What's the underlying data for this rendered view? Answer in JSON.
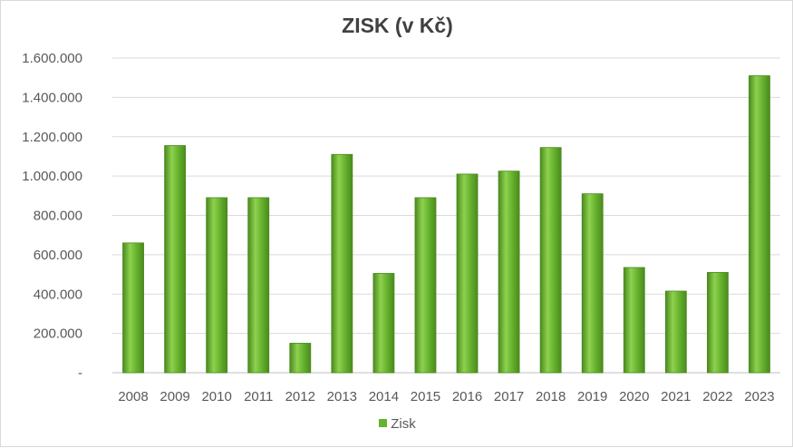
{
  "chart_data": {
    "type": "bar",
    "title": "ZISK (v Kč)",
    "xlabel": "",
    "ylabel": "",
    "categories": [
      "2008",
      "2009",
      "2010",
      "2011",
      "2012",
      "2013",
      "2014",
      "2015",
      "2016",
      "2017",
      "2018",
      "2019",
      "2020",
      "2021",
      "2022",
      "2023"
    ],
    "series": [
      {
        "name": "Zisk",
        "values": [
          660000,
          1155000,
          890000,
          890000,
          150000,
          1110000,
          505000,
          890000,
          1010000,
          1025000,
          1145000,
          910000,
          535000,
          415000,
          510000,
          1510000
        ]
      }
    ],
    "ylim": [
      0,
      1600000
    ],
    "y_ticks": [
      0,
      200000,
      400000,
      600000,
      800000,
      1000000,
      1200000,
      1400000,
      1600000
    ],
    "y_tick_labels": [
      "-",
      "200.000",
      "400.000",
      "600.000",
      "800.000",
      "1.000.000",
      "1.200.000",
      "1.400.000",
      "1.600.000"
    ],
    "grid": true,
    "legend_position": "bottom",
    "colors": {
      "bar": "#66b32e",
      "bar_light": "#8fd14f",
      "bar_dark": "#4a8a1e",
      "grid": "#d9d9d9",
      "text": "#595959"
    }
  }
}
